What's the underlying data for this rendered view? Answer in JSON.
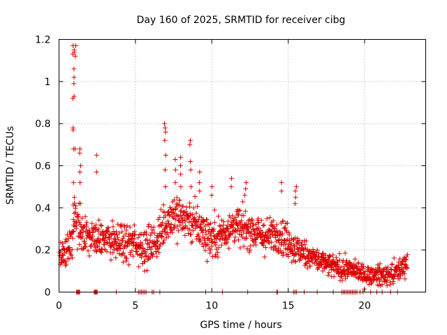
{
  "chart_data": {
    "type": "scatter",
    "title": "Day 160 of 2025, SRMTID for receiver cibg",
    "xlabel": "GPS time / hours",
    "ylabel": "SRMTID / TECUs",
    "xlim": [
      0,
      24
    ],
    "ylim": [
      0,
      1.2
    ],
    "grid": true,
    "legend": "none",
    "marker": "+",
    "series_color": "#dd0000",
    "x_ticks": [
      0,
      5,
      10,
      15,
      20
    ],
    "x_tick_labels": [
      "0",
      "5",
      "10",
      "15",
      "20"
    ],
    "y_ticks": [
      0,
      0.2,
      0.4,
      0.6,
      0.8,
      1,
      1.2
    ],
    "y_tick_labels": [
      "0",
      "0.2",
      "0.4",
      "0.6",
      "0.8",
      "1",
      "1.2"
    ],
    "trend": {
      "x": [
        0,
        0.5,
        0.8,
        1.0,
        1.2,
        1.5,
        2.0,
        2.5,
        3.0,
        4.0,
        5.0,
        5.5,
        6.0,
        6.5,
        7.0,
        7.5,
        8.0,
        8.5,
        9.0,
        9.5,
        10.0,
        10.5,
        11.0,
        11.5,
        12.0,
        12.5,
        13.0,
        13.5,
        14.0,
        14.5,
        15.0,
        15.5,
        16.0,
        16.5,
        17.0,
        17.5,
        18.0,
        18.5,
        19.0,
        19.5,
        20.0,
        20.5,
        21.0,
        21.5,
        22.0,
        22.5,
        22.8
      ],
      "y": [
        0.15,
        0.18,
        0.25,
        0.35,
        0.3,
        0.3,
        0.26,
        0.25,
        0.26,
        0.23,
        0.23,
        0.22,
        0.22,
        0.25,
        0.34,
        0.37,
        0.36,
        0.34,
        0.32,
        0.28,
        0.26,
        0.27,
        0.3,
        0.32,
        0.3,
        0.3,
        0.28,
        0.26,
        0.27,
        0.28,
        0.24,
        0.2,
        0.19,
        0.17,
        0.15,
        0.13,
        0.12,
        0.11,
        0.11,
        0.1,
        0.08,
        0.08,
        0.08,
        0.08,
        0.09,
        0.12,
        0.15
      ]
    },
    "spread": {
      "x": [
        0,
        1.0,
        2.0,
        3.0,
        6.5,
        7.5,
        9.5,
        10.5,
        13.0,
        15.0,
        16.5,
        18.0,
        20.0,
        22.8
      ],
      "y": [
        0.05,
        0.07,
        0.06,
        0.06,
        0.07,
        0.08,
        0.07,
        0.07,
        0.06,
        0.06,
        0.04,
        0.04,
        0.03,
        0.04
      ]
    },
    "spikes": [
      {
        "x": 0.95,
        "values": [
          1.17,
          1.15,
          1.13,
          1.06,
          1.02,
          0.99,
          0.93,
          0.92,
          0.78,
          0.77,
          0.68,
          0.52
        ]
      },
      {
        "x": 1.05,
        "values": [
          1.17,
          1.14,
          1.12,
          0.68,
          0.45
        ]
      },
      {
        "x": 1.4,
        "values": [
          0.68,
          0.66,
          0.6,
          0.57,
          0.52,
          0.42
        ]
      },
      {
        "x": 2.45,
        "values": [
          0.65,
          0.57
        ]
      },
      {
        "x": 6.95,
        "values": [
          0.8,
          0.78,
          0.76,
          0.72,
          0.65,
          0.58,
          0.5
        ]
      },
      {
        "x": 7.6,
        "values": [
          0.63,
          0.58,
          0.52
        ]
      },
      {
        "x": 8.0,
        "values": [
          0.64,
          0.6,
          0.56,
          0.5
        ]
      },
      {
        "x": 8.6,
        "values": [
          0.72,
          0.7,
          0.62,
          0.58,
          0.5
        ]
      },
      {
        "x": 9.2,
        "values": [
          0.57,
          0.52,
          0.48
        ]
      },
      {
        "x": 10.0,
        "values": [
          0.5,
          0.46
        ]
      },
      {
        "x": 11.3,
        "values": [
          0.54,
          0.5
        ]
      },
      {
        "x": 12.2,
        "values": [
          0.52,
          0.49,
          0.46
        ]
      },
      {
        "x": 14.6,
        "values": [
          0.52,
          0.48
        ]
      },
      {
        "x": 15.5,
        "values": [
          0.5,
          0.48,
          0.45,
          0.42
        ]
      }
    ],
    "zero_values_x": [
      1.15,
      1.2,
      1.25,
      1.3,
      1.35,
      2.3,
      2.35,
      2.4,
      2.45,
      2.5,
      3.75,
      5.2,
      5.3,
      5.4,
      5.5,
      5.6,
      5.7,
      6.1,
      6.2,
      6.6,
      9.6,
      10.7,
      12.35,
      14.25,
      14.3,
      15.35,
      15.45,
      15.55,
      16.05,
      16.9,
      17.95,
      18.5,
      18.6,
      18.7,
      18.8,
      18.9,
      19.0,
      19.1,
      19.2,
      19.3,
      19.4,
      19.5,
      19.7,
      19.9,
      20.4,
      20.8,
      21.15,
      21.7,
      22.15
    ]
  }
}
